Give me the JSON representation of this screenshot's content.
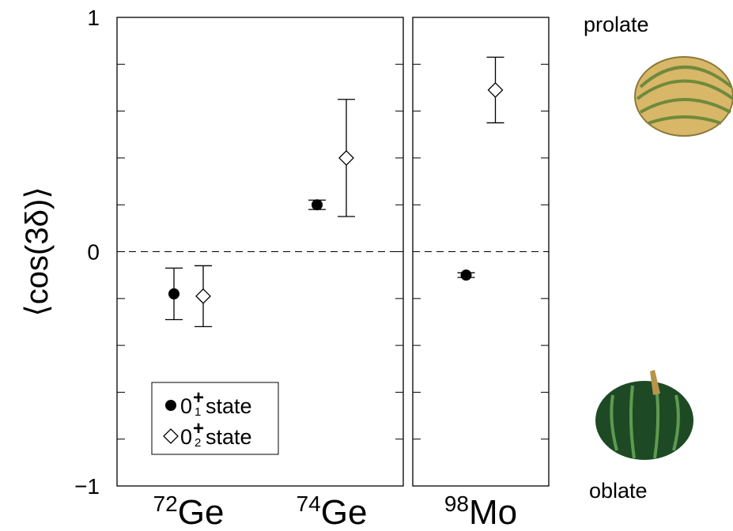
{
  "chart_data": [
    {
      "type": "errorbar",
      "ylabel": "⟨cos(3δ)⟩",
      "categories": [
        {
          "sup": "72",
          "main": "Ge"
        },
        {
          "sup": "74",
          "main": "Ge"
        }
      ],
      "series": [
        {
          "name": {
            "main": "0",
            "sub": "1",
            "sup": "+",
            "rest": " state"
          },
          "marker": "circle",
          "color": "#000000",
          "values": [
            -0.18,
            0.2
          ],
          "errors": [
            0.11,
            0.02
          ]
        },
        {
          "name": {
            "main": "0",
            "sub": "2",
            "sup": "+",
            "rest": " state"
          },
          "marker": "diamond",
          "color": "#000000",
          "values": [
            -0.19,
            0.4
          ],
          "errors": [
            0.13,
            0.25
          ]
        }
      ],
      "ylim": [
        -1,
        1
      ],
      "yticks": [
        {
          "value": -1,
          "label": "−1"
        },
        0,
        1
      ],
      "yminor_ticks": [
        -0.8,
        -0.6,
        -0.4,
        -0.2,
        0.2,
        0.4,
        0.6,
        0.8
      ],
      "reference_line": 0,
      "annotations": [
        "prolate",
        "oblate"
      ]
    },
    {
      "type": "errorbar",
      "categories": [
        {
          "sup": "98",
          "main": "Mo"
        }
      ],
      "series": [
        {
          "marker": "circle",
          "color": "#000000",
          "values": [
            -0.1
          ],
          "errors": [
            0.01
          ]
        },
        {
          "marker": "diamond",
          "color": "#000000",
          "values": [
            0.69
          ],
          "errors": [
            0.14
          ]
        }
      ],
      "ylim": [
        -1,
        1
      ],
      "yminor_ticks": [
        -0.8,
        -0.6,
        -0.4,
        -0.2,
        0.2,
        0.4,
        0.6,
        0.8
      ],
      "reference_line": 0
    }
  ]
}
